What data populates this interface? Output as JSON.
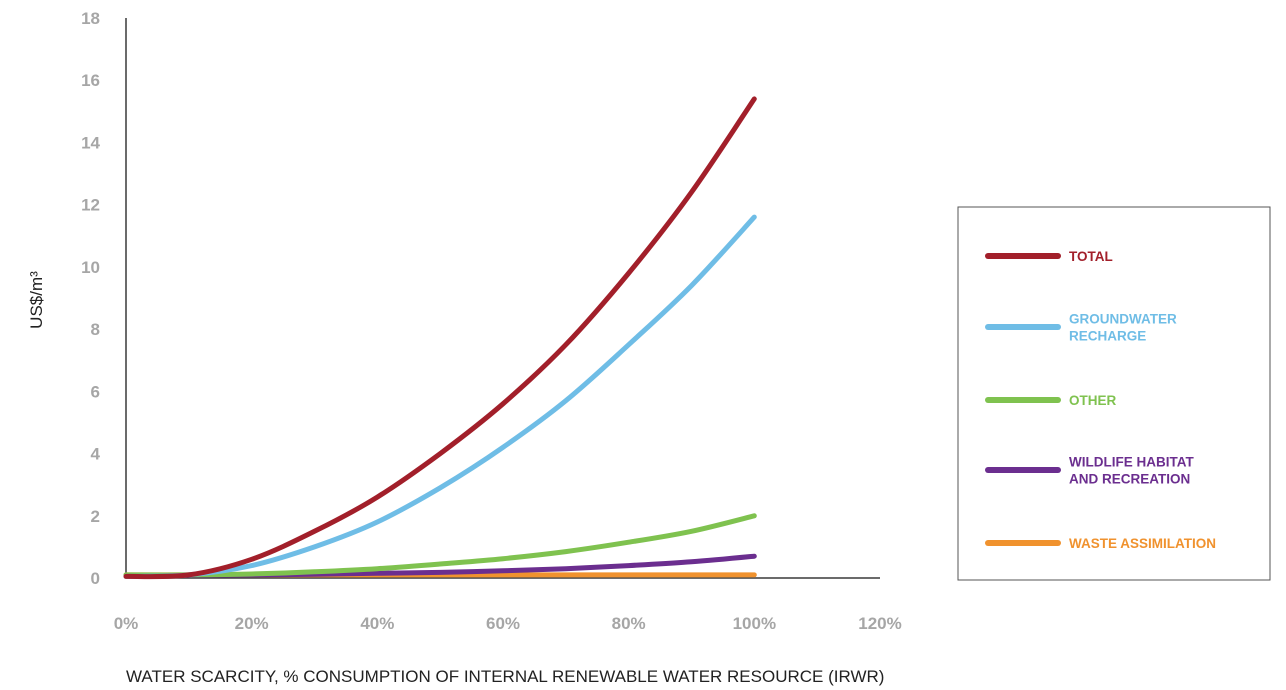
{
  "chart_data": {
    "type": "line",
    "title": "",
    "xlabel": "WATER SCARCITY, % CONSUMPTION OF INTERNAL RENEWABLE WATER RESOURCE (IRWR)",
    "ylabel": "US$/m³",
    "xlim": [
      0,
      120
    ],
    "ylim": [
      0,
      18
    ],
    "x_ticks": [
      "0%",
      "20%",
      "40%",
      "60%",
      "80%",
      "100%",
      "120%"
    ],
    "y_ticks": [
      "0",
      "2",
      "4",
      "6",
      "8",
      "10",
      "12",
      "14",
      "16",
      "18"
    ],
    "grid": false,
    "legend_position": "right",
    "x": [
      0,
      10,
      20,
      30,
      40,
      50,
      60,
      70,
      80,
      90,
      100
    ],
    "series": [
      {
        "name": "TOTAL",
        "color": "#a21f2a",
        "values": [
          0.05,
          0.1,
          0.6,
          1.5,
          2.6,
          4.0,
          5.6,
          7.5,
          9.8,
          12.4,
          15.4
        ]
      },
      {
        "name": "GROUNDWATER RECHARGE",
        "color": "#6fbde6",
        "values": [
          0.05,
          0.1,
          0.4,
          1.0,
          1.8,
          2.9,
          4.2,
          5.7,
          7.5,
          9.4,
          11.6
        ]
      },
      {
        "name": "OTHER",
        "color": "#7fc24f",
        "values": [
          0.1,
          0.1,
          0.13,
          0.2,
          0.3,
          0.45,
          0.62,
          0.85,
          1.15,
          1.5,
          2.0
        ]
      },
      {
        "name": "WILDLIFE HABITAT AND RECREATION",
        "color": "#6b2e8f",
        "values": [
          0.08,
          0.09,
          0.1,
          0.12,
          0.15,
          0.18,
          0.23,
          0.3,
          0.4,
          0.52,
          0.7
        ]
      },
      {
        "name": "WASTE ASSIMILATION",
        "color": "#f0922e",
        "values": [
          0.1,
          0.1,
          0.1,
          0.1,
          0.1,
          0.1,
          0.1,
          0.1,
          0.1,
          0.1,
          0.1
        ]
      }
    ],
    "legend": [
      {
        "lines": [
          "TOTAL"
        ],
        "color": "#a21f2a"
      },
      {
        "lines": [
          "GROUNDWATER",
          "RECHARGE"
        ],
        "color": "#6fbde6"
      },
      {
        "lines": [
          "OTHER"
        ],
        "color": "#7fc24f"
      },
      {
        "lines": [
          "WILDLIFE HABITAT",
          "AND RECREATION"
        ],
        "color": "#6b2e8f"
      },
      {
        "lines": [
          "WASTE ASSIMILATION"
        ],
        "color": "#f0922e"
      }
    ]
  }
}
